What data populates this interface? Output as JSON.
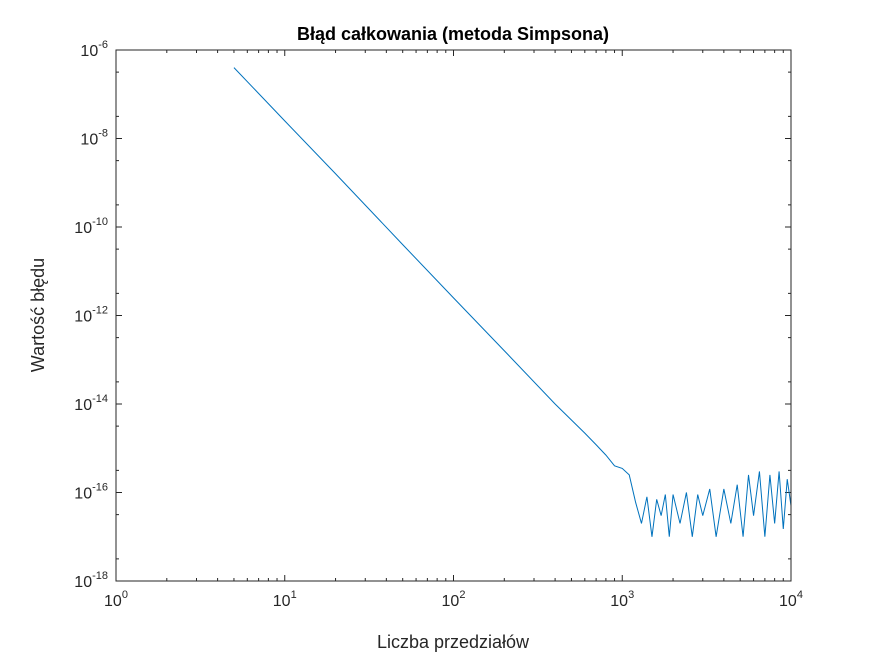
{
  "chart_data": {
    "type": "line",
    "title": "Błąd całkowania (metoda Simpsona)",
    "xlabel": "Liczba przedziałów",
    "ylabel": "Wartość błędu",
    "xscale": "log",
    "yscale": "log",
    "xlim": [
      1,
      10000
    ],
    "ylim": [
      1e-18,
      1e-06
    ],
    "grid": false,
    "x_ticks": [
      {
        "base": "10",
        "exp": "0",
        "value": 1
      },
      {
        "base": "10",
        "exp": "1",
        "value": 10
      },
      {
        "base": "10",
        "exp": "2",
        "value": 100
      },
      {
        "base": "10",
        "exp": "3",
        "value": 1000
      },
      {
        "base": "10",
        "exp": "4",
        "value": 10000
      }
    ],
    "y_ticks": [
      {
        "base": "10",
        "exp": "-18",
        "value": 1e-18
      },
      {
        "base": "10",
        "exp": "-16",
        "value": 1e-16
      },
      {
        "base": "10",
        "exp": "-14",
        "value": 1e-14
      },
      {
        "base": "10",
        "exp": "-12",
        "value": 1e-12
      },
      {
        "base": "10",
        "exp": "-10",
        "value": 1e-10
      },
      {
        "base": "10",
        "exp": "-8",
        "value": 1e-08
      },
      {
        "base": "10",
        "exp": "-6",
        "value": 1e-06
      }
    ],
    "series": [
      {
        "color": "#0072BD",
        "x": [
          5,
          10,
          20,
          50,
          100,
          200,
          400,
          600,
          700,
          800,
          900,
          1000,
          1100,
          1200,
          1300,
          1400,
          1500,
          1600,
          1700,
          1800,
          1900,
          2000,
          2200,
          2400,
          2600,
          2800,
          3000,
          3300,
          3600,
          4000,
          4400,
          4800,
          5200,
          5600,
          6000,
          6500,
          7000,
          7500,
          8000,
          8500,
          9000,
          9500,
          10000
        ],
        "y": [
          4e-07,
          2.5e-08,
          1.6e-09,
          4e-11,
          2.5e-12,
          1.6e-13,
          1e-14,
          2.2e-15,
          1.2e-15,
          7e-16,
          4e-16,
          3.5e-16,
          2.5e-16,
          6e-17,
          2e-17,
          8e-17,
          1e-17,
          7e-17,
          3e-17,
          9e-17,
          1e-17,
          9e-17,
          2e-17,
          1e-16,
          1e-17,
          9e-17,
          3e-17,
          1.2e-16,
          1e-17,
          1.2e-16,
          2e-17,
          1.5e-16,
          1e-17,
          2.5e-16,
          3e-17,
          3e-16,
          1e-17,
          2.5e-16,
          2e-17,
          3e-16,
          1.5e-17,
          2e-16,
          5e-17
        ]
      }
    ]
  }
}
